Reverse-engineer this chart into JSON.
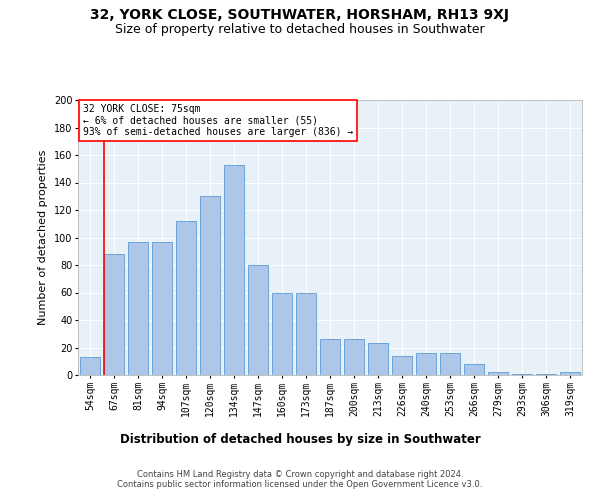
{
  "title": "32, YORK CLOSE, SOUTHWATER, HORSHAM, RH13 9XJ",
  "subtitle": "Size of property relative to detached houses in Southwater",
  "xlabel": "Distribution of detached houses by size in Southwater",
  "ylabel": "Number of detached properties",
  "categories": [
    "54sqm",
    "67sqm",
    "81sqm",
    "94sqm",
    "107sqm",
    "120sqm",
    "134sqm",
    "147sqm",
    "160sqm",
    "173sqm",
    "187sqm",
    "200sqm",
    "213sqm",
    "226sqm",
    "240sqm",
    "253sqm",
    "266sqm",
    "279sqm",
    "293sqm",
    "306sqm",
    "319sqm"
  ],
  "values": [
    13,
    88,
    97,
    97,
    112,
    130,
    153,
    80,
    60,
    60,
    26,
    26,
    23,
    14,
    16,
    16,
    8,
    2,
    1,
    1,
    2
  ],
  "bar_color": "#aec6e8",
  "bar_edge_color": "#5b9bd5",
  "vline_color": "red",
  "vline_index": 1,
  "annotation_line1": "32 YORK CLOSE: 75sqm",
  "annotation_line2": "← 6% of detached houses are smaller (55)",
  "annotation_line3": "93% of semi-detached houses are larger (836) →",
  "ylim": [
    0,
    200
  ],
  "yticks": [
    0,
    20,
    40,
    60,
    80,
    100,
    120,
    140,
    160,
    180,
    200
  ],
  "background_color": "#e8f0f8",
  "footer_line1": "Contains HM Land Registry data © Crown copyright and database right 2024.",
  "footer_line2": "Contains public sector information licensed under the Open Government Licence v3.0.",
  "title_fontsize": 10,
  "subtitle_fontsize": 9,
  "xlabel_fontsize": 8.5,
  "ylabel_fontsize": 8,
  "tick_fontsize": 7,
  "annotation_fontsize": 7,
  "footer_fontsize": 6
}
